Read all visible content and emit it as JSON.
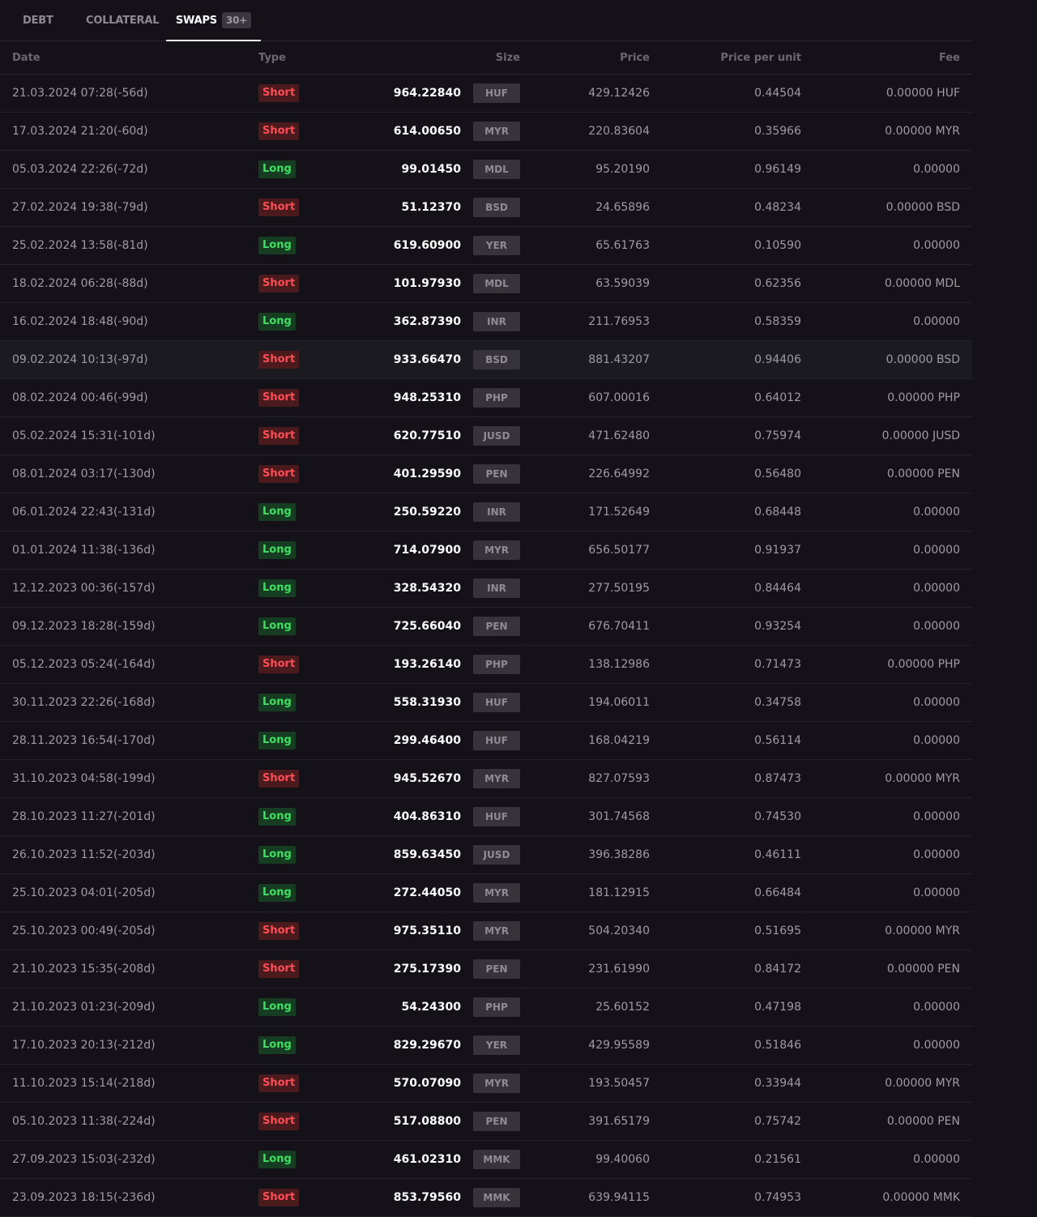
{
  "tabs": {
    "debt": "DEBT",
    "collateral": "COLLATERAL",
    "swaps": "SWAPS",
    "swaps_count": "30+"
  },
  "columns": {
    "date": "Date",
    "type": "Type",
    "size": "Size",
    "price": "Price",
    "price_per_unit": "Price per unit",
    "fee": "Fee"
  },
  "rows": [
    {
      "date": "21.03.2024 07:28(-56d)",
      "type": "Short",
      "size": "964.22840",
      "currency": "HUF",
      "price": "429.12426",
      "ppu": "0.44504",
      "fee": "0.00000 HUF"
    },
    {
      "date": "17.03.2024 21:20(-60d)",
      "type": "Short",
      "size": "614.00650",
      "currency": "MYR",
      "price": "220.83604",
      "ppu": "0.35966",
      "fee": "0.00000 MYR"
    },
    {
      "date": "05.03.2024 22:26(-72d)",
      "type": "Long",
      "size": "99.01450",
      "currency": "MDL",
      "price": "95.20190",
      "ppu": "0.96149",
      "fee": "0.00000"
    },
    {
      "date": "27.02.2024 19:38(-79d)",
      "type": "Short",
      "size": "51.12370",
      "currency": "BSD",
      "price": "24.65896",
      "ppu": "0.48234",
      "fee": "0.00000 BSD"
    },
    {
      "date": "25.02.2024 13:58(-81d)",
      "type": "Long",
      "size": "619.60900",
      "currency": "YER",
      "price": "65.61763",
      "ppu": "0.10590",
      "fee": "0.00000"
    },
    {
      "date": "18.02.2024 06:28(-88d)",
      "type": "Short",
      "size": "101.97930",
      "currency": "MDL",
      "price": "63.59039",
      "ppu": "0.62356",
      "fee": "0.00000 MDL"
    },
    {
      "date": "16.02.2024 18:48(-90d)",
      "type": "Long",
      "size": "362.87390",
      "currency": "INR",
      "price": "211.76953",
      "ppu": "0.58359",
      "fee": "0.00000"
    },
    {
      "date": "09.02.2024 10:13(-97d)",
      "type": "Short",
      "size": "933.66470",
      "currency": "BSD",
      "price": "881.43207",
      "ppu": "0.94406",
      "fee": "0.00000 BSD",
      "highlighted": true
    },
    {
      "date": "08.02.2024 00:46(-99d)",
      "type": "Short",
      "size": "948.25310",
      "currency": "PHP",
      "price": "607.00016",
      "ppu": "0.64012",
      "fee": "0.00000 PHP"
    },
    {
      "date": "05.02.2024 15:31(-101d)",
      "type": "Short",
      "size": "620.77510",
      "currency": "JUSD",
      "price": "471.62480",
      "ppu": "0.75974",
      "fee": "0.00000 JUSD"
    },
    {
      "date": "08.01.2024 03:17(-130d)",
      "type": "Short",
      "size": "401.29590",
      "currency": "PEN",
      "price": "226.64992",
      "ppu": "0.56480",
      "fee": "0.00000 PEN"
    },
    {
      "date": "06.01.2024 22:43(-131d)",
      "type": "Long",
      "size": "250.59220",
      "currency": "INR",
      "price": "171.52649",
      "ppu": "0.68448",
      "fee": "0.00000"
    },
    {
      "date": "01.01.2024 11:38(-136d)",
      "type": "Long",
      "size": "714.07900",
      "currency": "MYR",
      "price": "656.50177",
      "ppu": "0.91937",
      "fee": "0.00000"
    },
    {
      "date": "12.12.2023 00:36(-157d)",
      "type": "Long",
      "size": "328.54320",
      "currency": "INR",
      "price": "277.50195",
      "ppu": "0.84464",
      "fee": "0.00000"
    },
    {
      "date": "09.12.2023 18:28(-159d)",
      "type": "Long",
      "size": "725.66040",
      "currency": "PEN",
      "price": "676.70411",
      "ppu": "0.93254",
      "fee": "0.00000"
    },
    {
      "date": "05.12.2023 05:24(-164d)",
      "type": "Short",
      "size": "193.26140",
      "currency": "PHP",
      "price": "138.12986",
      "ppu": "0.71473",
      "fee": "0.00000 PHP"
    },
    {
      "date": "30.11.2023 22:26(-168d)",
      "type": "Long",
      "size": "558.31930",
      "currency": "HUF",
      "price": "194.06011",
      "ppu": "0.34758",
      "fee": "0.00000"
    },
    {
      "date": "28.11.2023 16:54(-170d)",
      "type": "Long",
      "size": "299.46400",
      "currency": "HUF",
      "price": "168.04219",
      "ppu": "0.56114",
      "fee": "0.00000"
    },
    {
      "date": "31.10.2023 04:58(-199d)",
      "type": "Short",
      "size": "945.52670",
      "currency": "MYR",
      "price": "827.07593",
      "ppu": "0.87473",
      "fee": "0.00000 MYR"
    },
    {
      "date": "28.10.2023 11:27(-201d)",
      "type": "Long",
      "size": "404.86310",
      "currency": "HUF",
      "price": "301.74568",
      "ppu": "0.74530",
      "fee": "0.00000"
    },
    {
      "date": "26.10.2023 11:52(-203d)",
      "type": "Long",
      "size": "859.63450",
      "currency": "JUSD",
      "price": "396.38286",
      "ppu": "0.46111",
      "fee": "0.00000"
    },
    {
      "date": "25.10.2023 04:01(-205d)",
      "type": "Long",
      "size": "272.44050",
      "currency": "MYR",
      "price": "181.12915",
      "ppu": "0.66484",
      "fee": "0.00000"
    },
    {
      "date": "25.10.2023 00:49(-205d)",
      "type": "Short",
      "size": "975.35110",
      "currency": "MYR",
      "price": "504.20340",
      "ppu": "0.51695",
      "fee": "0.00000 MYR"
    },
    {
      "date": "21.10.2023 15:35(-208d)",
      "type": "Short",
      "size": "275.17390",
      "currency": "PEN",
      "price": "231.61990",
      "ppu": "0.84172",
      "fee": "0.00000 PEN"
    },
    {
      "date": "21.10.2023 01:23(-209d)",
      "type": "Long",
      "size": "54.24300",
      "currency": "PHP",
      "price": "25.60152",
      "ppu": "0.47198",
      "fee": "0.00000"
    },
    {
      "date": "17.10.2023 20:13(-212d)",
      "type": "Long",
      "size": "829.29670",
      "currency": "YER",
      "price": "429.95589",
      "ppu": "0.51846",
      "fee": "0.00000"
    },
    {
      "date": "11.10.2023 15:14(-218d)",
      "type": "Short",
      "size": "570.07090",
      "currency": "MYR",
      "price": "193.50457",
      "ppu": "0.33944",
      "fee": "0.00000 MYR"
    },
    {
      "date": "05.10.2023 11:38(-224d)",
      "type": "Short",
      "size": "517.08800",
      "currency": "PEN",
      "price": "391.65179",
      "ppu": "0.75742",
      "fee": "0.00000 PEN"
    },
    {
      "date": "27.09.2023 15:03(-232d)",
      "type": "Long",
      "size": "461.02310",
      "currency": "MMK",
      "price": "99.40060",
      "ppu": "0.21561",
      "fee": "0.00000"
    },
    {
      "date": "23.09.2023 18:15(-236d)",
      "type": "Short",
      "size": "853.79560",
      "currency": "MMK",
      "price": "639.94115",
      "ppu": "0.74953",
      "fee": "0.00000 MMK"
    }
  ],
  "colors": {
    "background": "#141218",
    "short_text": "#ff4d55",
    "short_bg": "#4a1a1d",
    "long_text": "#3ee062",
    "long_bg": "#163d22"
  }
}
